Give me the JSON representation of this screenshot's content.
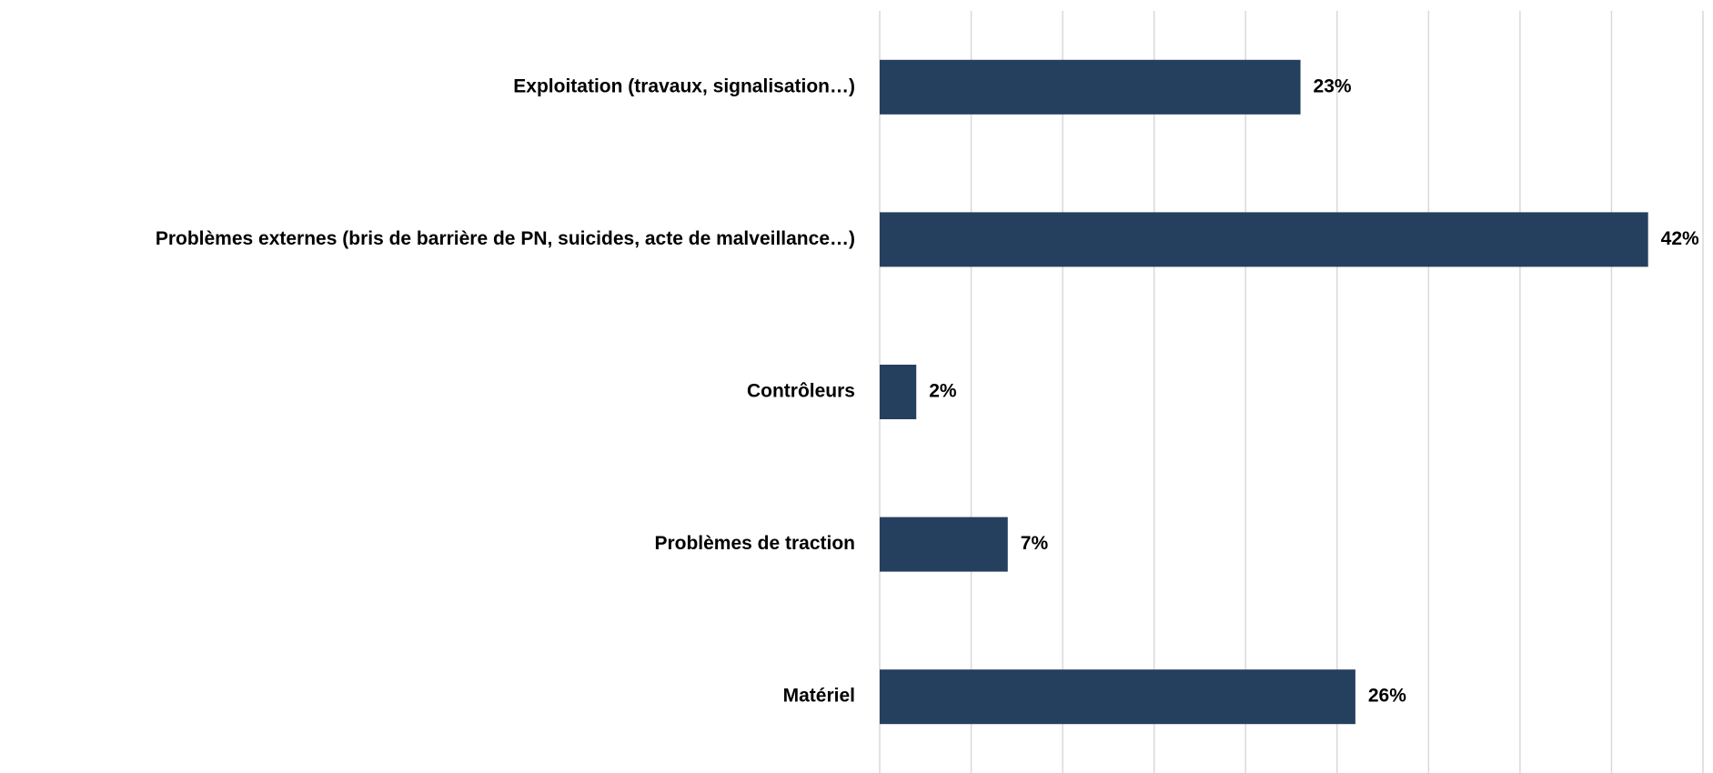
{
  "chart_data": {
    "type": "hbar",
    "categories": [
      "Exploitation (travaux, signalisation…)",
      "Problèmes externes (bris de barrière de PN, suicides, acte de malveillance…)",
      "Contrôleurs",
      "Problèmes de traction",
      "Matériel"
    ],
    "values": [
      23,
      42,
      2,
      7,
      26
    ],
    "value_labels": [
      "23%",
      "42%",
      "2%",
      "7%",
      "26%"
    ],
    "color": "#253f5f",
    "xlim": [
      0,
      45
    ],
    "xticks": [
      0,
      5,
      10,
      15,
      20,
      25,
      30,
      35,
      40,
      45
    ],
    "grid": true
  }
}
